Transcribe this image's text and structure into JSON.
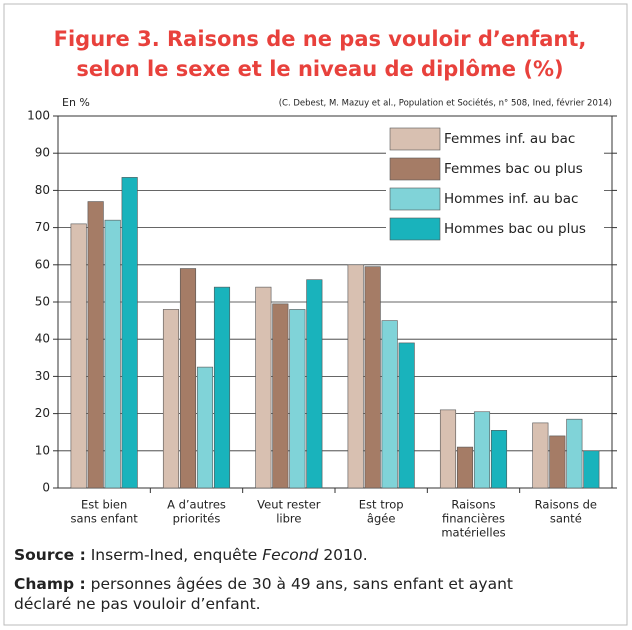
{
  "chart_data": {
    "type": "bar",
    "title": [
      "Figure 3. Raisons de ne pas vouloir d’enfant,",
      "selon le sexe et le niveau de diplôme (%)"
    ],
    "y_label": "En %",
    "credit": "(C. Debest, M. Mazuy et al., Population et Sociétés, n° 508, Ined, février 2014)",
    "categories": [
      [
        "Est bien",
        "sans enfant"
      ],
      [
        "A d’autres",
        "priorités"
      ],
      [
        "Veut rester",
        "libre"
      ],
      [
        "Est trop",
        "âgée"
      ],
      [
        "Raisons",
        "financières",
        "matérielles"
      ],
      [
        "Raisons de",
        "santé"
      ]
    ],
    "series": [
      {
        "name": "Femmes inf. au bac",
        "color": "#d8c0b1",
        "values": [
          71,
          48,
          54,
          60,
          21,
          17.5
        ]
      },
      {
        "name": "Femmes bac ou plus",
        "color": "#a57c66",
        "values": [
          77,
          59,
          49.5,
          59.5,
          11,
          14
        ]
      },
      {
        "name": "Hommes inf. au bac",
        "color": "#80d3d8",
        "values": [
          72,
          32.5,
          48,
          45,
          20.5,
          18.5
        ]
      },
      {
        "name": "Hommes bac ou plus",
        "color": "#19b3bc",
        "values": [
          83.5,
          54,
          56,
          39,
          15.5,
          10
        ]
      }
    ],
    "ylim": [
      0,
      100
    ],
    "yticks": [
      0,
      10,
      20,
      30,
      40,
      50,
      60,
      70,
      80,
      90,
      100
    ],
    "grid": true,
    "legend": "top-right",
    "source": {
      "label": "Source :",
      "text": [
        "Inserm-Ined, enquête ",
        "Fecond",
        " 2010."
      ]
    },
    "scope": {
      "label": "Champ :",
      "text": "personnes âgées de 30 à 49 ans, sans enfant et ayant déclaré ne pas vouloir d’enfant."
    }
  }
}
